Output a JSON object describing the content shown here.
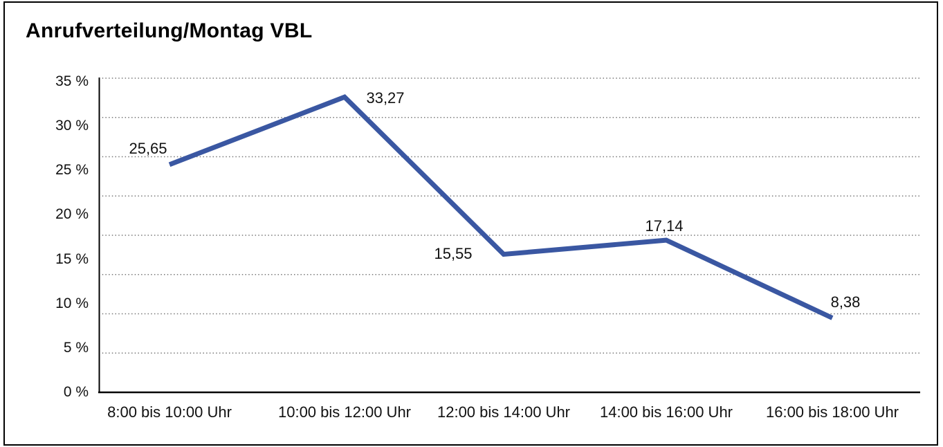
{
  "title": "Anrufverteilung/Montag VBL",
  "chart_data": {
    "type": "line",
    "title": "Anrufverteilung/Montag VBL",
    "categories": [
      "8:00 bis 10:00 Uhr",
      "10:00 bis 12:00 Uhr",
      "12:00 bis 14:00 Uhr",
      "14:00 bis 16:00 Uhr",
      "16:00 bis 18:00 Uhr"
    ],
    "values": [
      25.65,
      33.27,
      15.55,
      17.14,
      8.38
    ],
    "point_labels": [
      "25,65",
      "33,27",
      "15,55",
      "17,14",
      "8,38"
    ],
    "y_tick_labels": [
      "0 %",
      "5 %",
      "10 %",
      "15 %",
      "20 %",
      "25 %",
      "30 %",
      "35 %"
    ],
    "ylim": [
      0,
      35
    ],
    "xlabel": "",
    "ylabel": "",
    "legend": "none",
    "grid": "horizontal dotted",
    "line_color": "#3A57A2",
    "axis_color": "#000000",
    "gridline_color": "#777777",
    "text_color": "#111111",
    "background": "#FFFFFF"
  }
}
